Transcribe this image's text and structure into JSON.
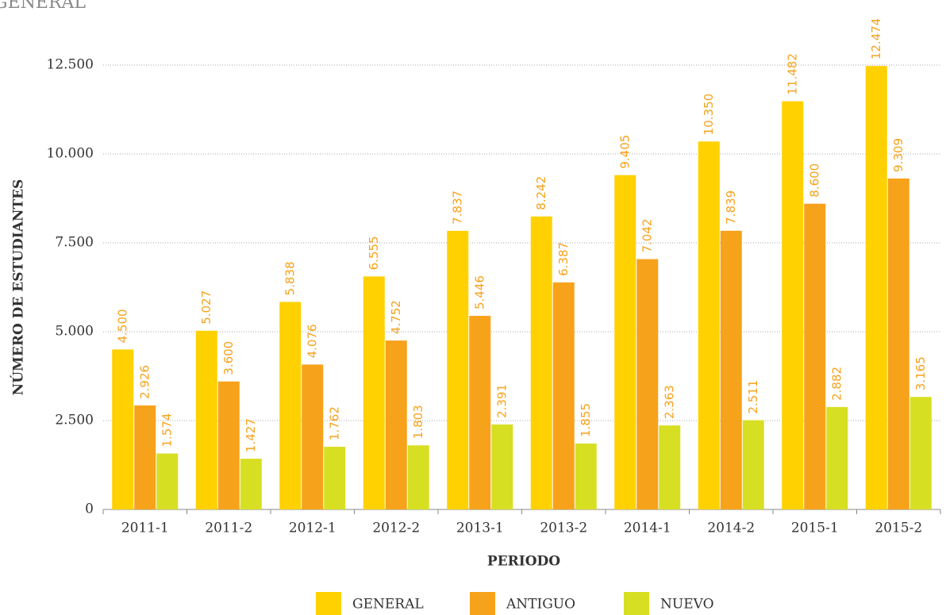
{
  "chart_data": {
    "type": "bar",
    "title": "GENERAL",
    "categories": [
      "2011-1",
      "2011-2",
      "2012-1",
      "2012-2",
      "2013-1",
      "2013-2",
      "2014-1",
      "2014-2",
      "2015-1",
      "2015-2"
    ],
    "series": [
      {
        "name": "GENERAL",
        "color": "#ffd100",
        "values": [
          4500,
          5027,
          5838,
          6555,
          7837,
          8242,
          9405,
          10350,
          11482,
          12474
        ],
        "value_labels": [
          "4.500",
          "5.027",
          "5.838",
          "6.555",
          "7.837",
          "8.242",
          "9.405",
          "10.350",
          "11.482",
          "12.474"
        ]
      },
      {
        "name": "ANTIGUO",
        "color": "#f7a21b",
        "values": [
          2926,
          3600,
          4076,
          4752,
          5446,
          6387,
          7042,
          7839,
          8600,
          9309
        ],
        "value_labels": [
          "2.926",
          "3.600",
          "4.076",
          "4.752",
          "5.446",
          "6.387",
          "7.042",
          "7.839",
          "8.600",
          "9.309"
        ]
      },
      {
        "name": "NUEVO",
        "color": "#d7df23",
        "values": [
          1574,
          1427,
          1762,
          1803,
          2391,
          1855,
          2363,
          2511,
          2882,
          3165
        ],
        "value_labels": [
          "1.574",
          "1.427",
          "1.762",
          "1.803",
          "2.391",
          "1.855",
          "2.363",
          "2.511",
          "2.882",
          "3.165"
        ]
      }
    ],
    "ylabel": "NÚMERO DE ESTUDIANTES",
    "xlabel": "PERIODO",
    "ylim": [
      0,
      12500
    ],
    "yticks": [
      0,
      {
        "value": 2500,
        "label": "2.500"
      },
      {
        "value": 5000,
        "label": "5.000"
      },
      {
        "value": 7500,
        "label": "7.500"
      },
      {
        "value": 10000,
        "label": "10.000"
      },
      {
        "value": 12500,
        "label": "12.500"
      }
    ],
    "grid": true,
    "legend": "bottom"
  }
}
